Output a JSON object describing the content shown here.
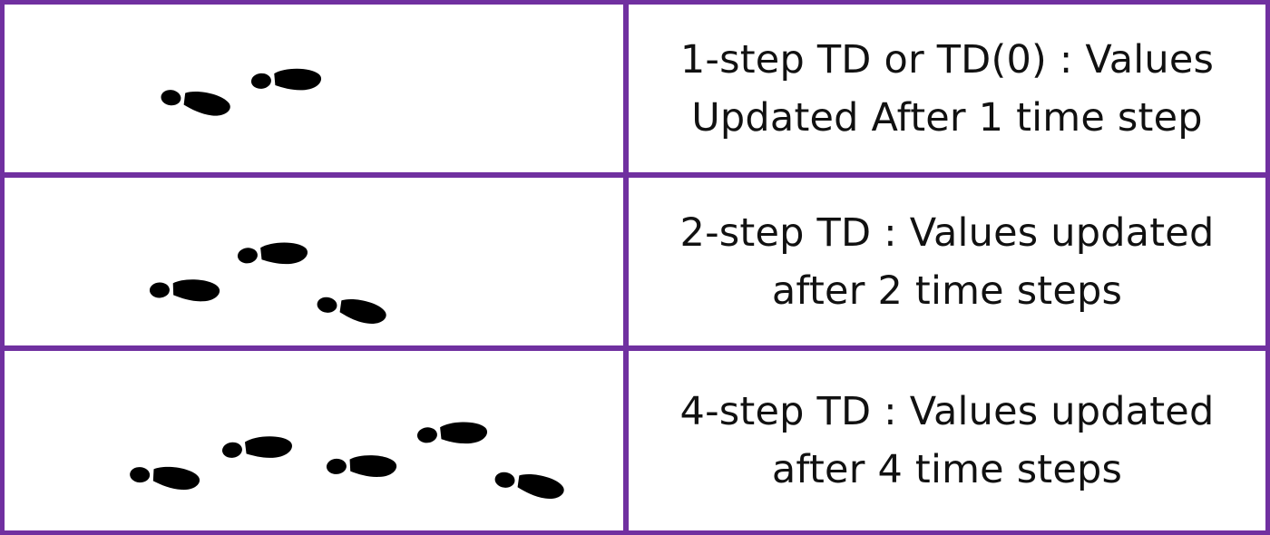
{
  "rows": [
    {
      "footprint_icons": [
        "footprint-icon",
        "footprint-icon"
      ],
      "line1": "1-step TD or TD(0) : Values",
      "line2": "Updated After 1 time step"
    },
    {
      "footprint_icons": [
        "footprint-icon",
        "footprint-icon",
        "footprint-icon"
      ],
      "line1": "2-step TD : Values updated",
      "line2": "after 2 time steps"
    },
    {
      "footprint_icons": [
        "footprint-icon",
        "footprint-icon",
        "footprint-icon",
        "footprint-icon",
        "footprint-icon"
      ],
      "line1": "4-step TD : Values updated",
      "line2": "after 4 time steps"
    }
  ],
  "colors": {
    "border": "#7030a0",
    "footprint": "#000000",
    "text": "#111111"
  }
}
